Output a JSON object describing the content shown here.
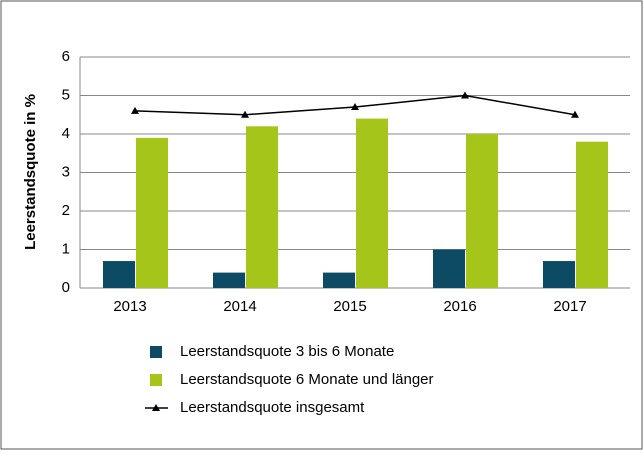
{
  "chart_data": {
    "type": "bar",
    "y_label": "Leerstandsquote in %",
    "categories": [
      "2013",
      "2014",
      "2015",
      "2016",
      "2017"
    ],
    "series": [
      {
        "name": "Leerstandsquote 3 bis 6 Monate",
        "color": "#0d4b64",
        "type": "bar",
        "values": [
          0.7,
          0.4,
          0.4,
          1.0,
          0.7
        ]
      },
      {
        "name": "Leerstandsquote 6 Monate und länger",
        "color": "#a5c51b",
        "type": "bar",
        "values": [
          3.9,
          4.2,
          4.4,
          4.0,
          3.8
        ]
      },
      {
        "name": "Leerstandsquote insgesamt",
        "color": "#000000",
        "type": "line",
        "values": [
          4.6,
          4.5,
          4.7,
          5.0,
          4.5
        ]
      }
    ],
    "ylim": [
      0,
      6
    ],
    "yticks": [
      0,
      1,
      2,
      3,
      4,
      5,
      6
    ],
    "grid": true
  }
}
